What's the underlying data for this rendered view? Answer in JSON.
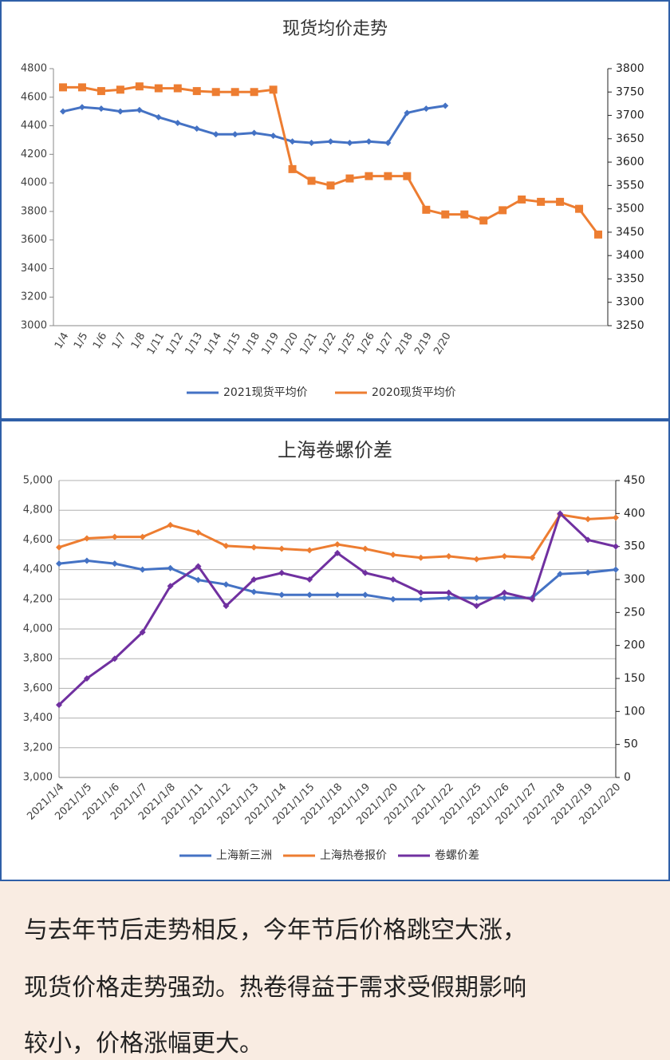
{
  "chart_data": [
    {
      "type": "line",
      "title": "现货均价走势",
      "categories": [
        "1/4",
        "1/5",
        "1/6",
        "1/7",
        "1/8",
        "1/11",
        "1/12",
        "1/13",
        "1/14",
        "1/15",
        "1/18",
        "1/19",
        "1/20",
        "1/21",
        "1/22",
        "1/25",
        "1/26",
        "1/27",
        "2/18",
        "2/19",
        "2/20",
        null,
        null,
        null,
        null,
        null,
        null,
        null,
        null
      ],
      "series": [
        {
          "name": "2021现货平均价",
          "color": "#4472c4",
          "values": [
            4500,
            4530,
            4520,
            4500,
            4510,
            4460,
            4420,
            4380,
            4340,
            4340,
            4350,
            4330,
            4290,
            4280,
            4290,
            4280,
            4290,
            4280,
            4490,
            4520,
            4540,
            null,
            null,
            null,
            null,
            null,
            null,
            null,
            null
          ]
        },
        {
          "name": "2020现货平均价",
          "color": "#ed7d31",
          "axis": "y2",
          "values": [
            3760,
            3760,
            3752,
            3755,
            3762,
            3758,
            3758,
            3752,
            3750,
            3750,
            3750,
            3755,
            3585,
            3560,
            3550,
            3565,
            3570,
            3570,
            3570,
            3498,
            3488,
            3488,
            3475,
            3497,
            3520,
            3515,
            3515,
            3500,
            3445
          ]
        }
      ],
      "ylim": [
        3000,
        4800
      ],
      "yticks": [
        3000,
        3200,
        3400,
        3600,
        3800,
        4000,
        4200,
        4400,
        4600,
        4800
      ],
      "y2lim": [
        3250,
        3800
      ],
      "y2ticks": [
        3250,
        3300,
        3350,
        3400,
        3450,
        3500,
        3550,
        3600,
        3650,
        3700,
        3750,
        3800
      ],
      "grid": false,
      "legend": "bottom"
    },
    {
      "type": "line",
      "title": "上海卷螺价差",
      "categories": [
        "2021/1/4",
        "2021/1/5",
        "2021/1/6",
        "2021/1/7",
        "2021/1/8",
        "2021/1/11",
        "2021/1/12",
        "2021/1/13",
        "2021/1/14",
        "2021/1/15",
        "2021/1/18",
        "2021/1/19",
        "2021/1/20",
        "2021/1/21",
        "2021/1/22",
        "2021/1/25",
        "2021/1/26",
        "2021/1/27",
        "2021/2/18",
        "2021/2/19",
        "2021/2/20"
      ],
      "series": [
        {
          "name": "上海新三洲",
          "color": "#4472c4",
          "values": [
            4440,
            4460,
            4440,
            4400,
            4410,
            4330,
            4300,
            4250,
            4230,
            4230,
            4230,
            4230,
            4200,
            4200,
            4210,
            4210,
            4210,
            4210,
            4370,
            4380,
            4400
          ]
        },
        {
          "name": "上海热卷报价",
          "color": "#ed7d31",
          "values": [
            4550,
            4610,
            4620,
            4620,
            4700,
            4650,
            4560,
            4550,
            4540,
            4530,
            4570,
            4540,
            4500,
            4480,
            4490,
            4470,
            4490,
            4480,
            4770,
            4740,
            4750
          ]
        },
        {
          "name": "卷螺价差",
          "color": "#7030a0",
          "axis": "y2",
          "values": [
            110,
            150,
            180,
            220,
            290,
            320,
            260,
            300,
            310,
            300,
            340,
            310,
            300,
            280,
            280,
            260,
            280,
            270,
            400,
            360,
            350
          ]
        }
      ],
      "ylim": [
        3000,
        5000
      ],
      "yticks": [
        {
          "value": 3000,
          "label": "3,000"
        },
        {
          "value": 3200,
          "label": "3,200"
        },
        {
          "value": 3400,
          "label": "3,400"
        },
        {
          "value": 3600,
          "label": "3,600"
        },
        {
          "value": 3800,
          "label": "3,800"
        },
        {
          "value": 4000,
          "label": "4,000"
        },
        {
          "value": 4200,
          "label": "4,200"
        },
        {
          "value": 4400,
          "label": "4,400"
        },
        {
          "value": 4600,
          "label": "4,600"
        },
        {
          "value": 4800,
          "label": "4,800"
        },
        {
          "value": 5000,
          "label": "5,000"
        }
      ],
      "y2lim": [
        0,
        450
      ],
      "y2ticks": [
        0,
        50,
        100,
        150,
        200,
        250,
        300,
        350,
        400,
        450
      ],
      "grid": true,
      "legend": "bottom"
    }
  ],
  "text": {
    "lines": [
      "与去年节后走势相反，今年节后价格跳空大涨，",
      "现货价格走势强劲。热卷得益于需求受假期影响",
      "较小，价格涨幅更大。"
    ]
  }
}
